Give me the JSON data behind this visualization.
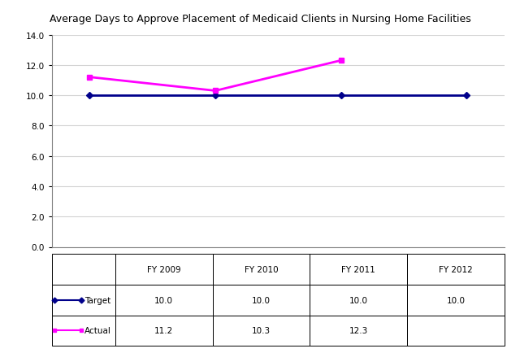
{
  "title": "Average Days to Approve Placement of Medicaid Clients in Nursing Home Facilities",
  "categories": [
    "FY 2009",
    "FY 2010",
    "FY 2011",
    "FY 2012"
  ],
  "target_values": [
    10.0,
    10.0,
    10.0,
    10.0
  ],
  "actual_values": [
    11.2,
    10.3,
    12.3,
    null
  ],
  "target_color": "#00008B",
  "actual_color": "#FF00FF",
  "ylim": [
    0,
    14.0
  ],
  "yticks": [
    0.0,
    2.0,
    4.0,
    6.0,
    8.0,
    10.0,
    12.0,
    14.0
  ],
  "table_header": [
    "",
    "FY 2009",
    "FY 2010",
    "FY 2011",
    "FY 2012"
  ],
  "table_rows": {
    "Target": [
      "10.0",
      "10.0",
      "10.0",
      "10.0"
    ],
    "Actual": [
      "11.2",
      "10.3",
      "12.3",
      ""
    ]
  },
  "legend_labels": [
    "Target",
    "Actual"
  ],
  "title_fontsize": 9,
  "axis_fontsize": 7.5,
  "table_fontsize": 7.5
}
